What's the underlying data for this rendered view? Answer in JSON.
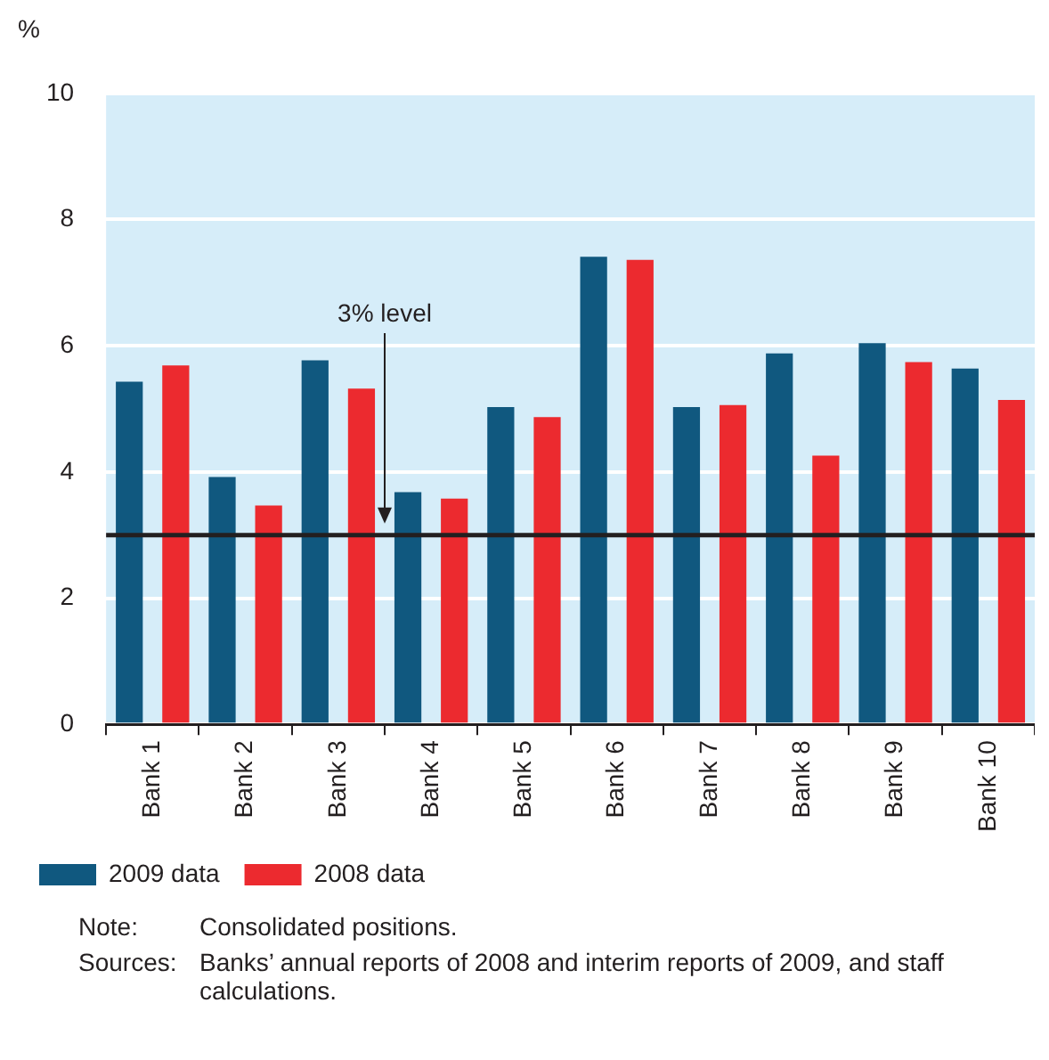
{
  "chart_data": {
    "type": "bar",
    "ylabel": "%",
    "categories": [
      "Bank 1",
      "Bank 2",
      "Bank 3",
      "Bank 4",
      "Bank 5",
      "Bank 6",
      "Bank 7",
      "Bank 8",
      "Bank 9",
      "Bank 10"
    ],
    "series": [
      {
        "name": "2009 data",
        "color": "#10587f",
        "values": [
          5.43,
          3.92,
          5.77,
          3.68,
          5.03,
          7.41,
          5.03,
          5.88,
          6.04,
          5.64
        ]
      },
      {
        "name": "2008 data",
        "color": "#ec2a2f",
        "values": [
          5.69,
          3.47,
          5.32,
          3.58,
          4.87,
          7.36,
          5.06,
          4.26,
          5.74,
          5.14
        ]
      }
    ],
    "ylim": [
      0,
      10
    ],
    "yticks": [
      0,
      2,
      4,
      6,
      8,
      10
    ],
    "grid": "y",
    "legend": "bottom",
    "ref_lines": [
      {
        "axis": "y",
        "value": 3,
        "color": "#231f20"
      }
    ],
    "annotations": [
      "3% level",
      "Note:\tConsolidated positions.",
      "Sources:\tBanks’ annual reports of 2008 and interim reports of 2009, and staff calculations."
    ]
  }
}
